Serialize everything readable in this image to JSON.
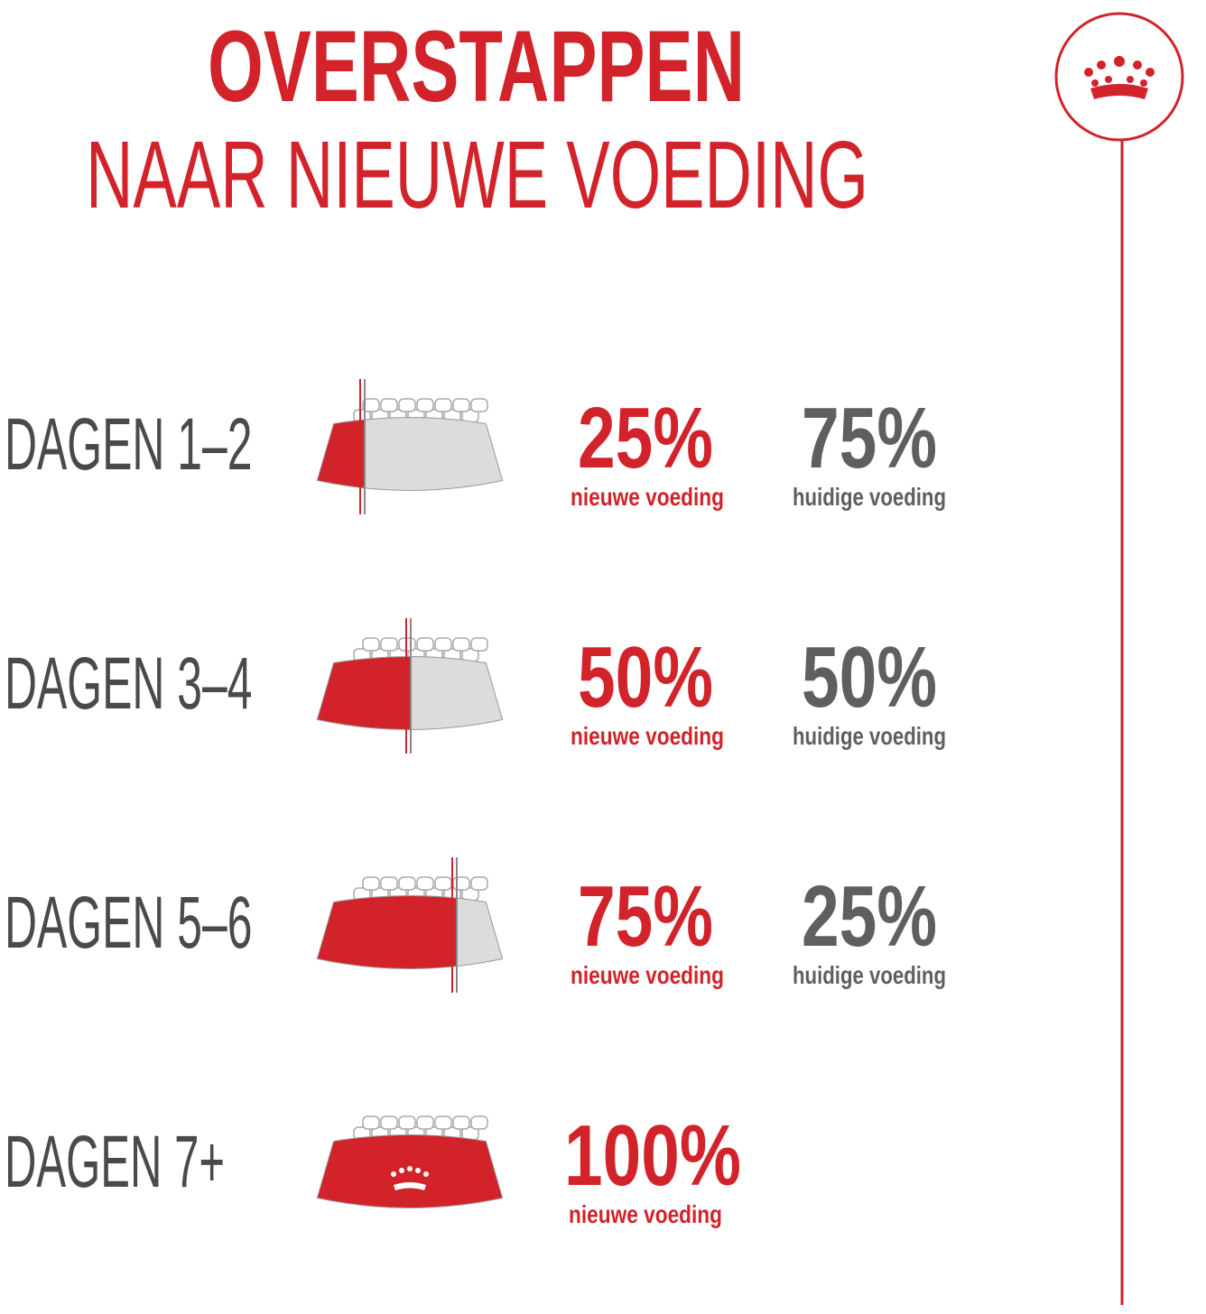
{
  "header": {
    "title": "OVERSTAPPEN",
    "subtitle": "NAAR NIEUWE VOEDING"
  },
  "steps": [
    {
      "label": "DAGEN 1–2",
      "new": {
        "value": 25,
        "label": "25%"
      },
      "new_caption": "nieuwe voeding",
      "current": {
        "value": 75,
        "label": "75%"
      },
      "current_caption": "huidige voeding"
    },
    {
      "label": "DAGEN 3–4",
      "new": {
        "value": 50,
        "label": "50%"
      },
      "new_caption": "nieuwe voeding",
      "current": {
        "value": 50,
        "label": "50%"
      },
      "current_caption": "huidige voeding"
    },
    {
      "label": "DAGEN 5–6",
      "new": {
        "value": 75,
        "label": "75%"
      },
      "new_caption": "nieuwe voeding",
      "current": {
        "value": 25,
        "label": "25%"
      },
      "current_caption": "huidige voeding"
    },
    {
      "label": "DAGEN 7+",
      "new": {
        "value": 100,
        "label": "100%"
      },
      "new_caption": "nieuwe voeding"
    }
  ]
}
